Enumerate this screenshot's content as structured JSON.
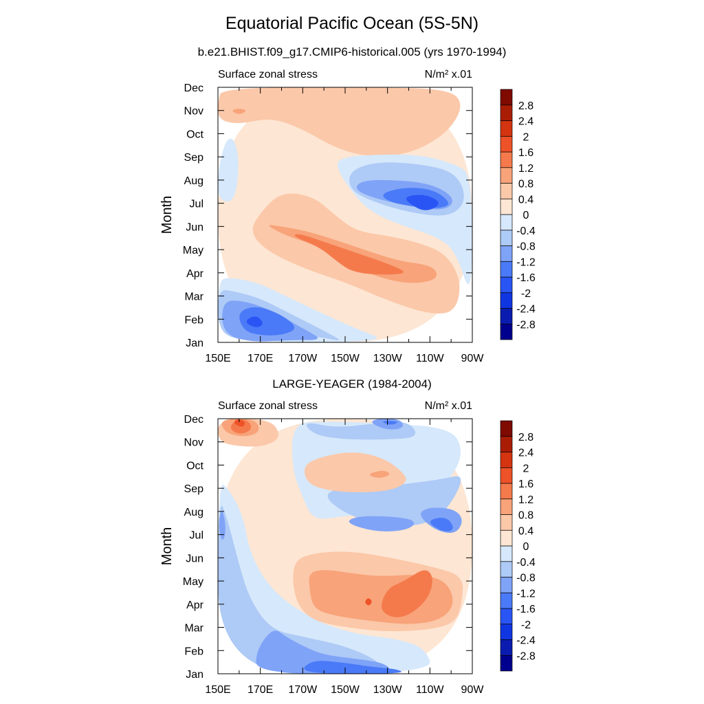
{
  "figure": {
    "title": "Equatorial Pacific Ocean (5S-5N)",
    "subtitle": "b.e21.BHIST.f09_g17.CMIP6-historical.005 (yrs 1970-1994)",
    "second_panel_title": "LARGE-YEAGER (1984-2004)"
  },
  "chart_data": [
    {
      "type": "heatmap",
      "title": "b.e21.BHIST.f09_g17.CMIP6-historical.005 (yrs 1970-1994)",
      "left_label": "Surface zonal stress",
      "units": "N/m² x.01",
      "xlabel": "",
      "ylabel": "Month",
      "x_ticks": [
        "150E",
        "170E",
        "170W",
        "150W",
        "130W",
        "110W",
        "90W"
      ],
      "x_values_deg_east": [
        150,
        170,
        190,
        210,
        230,
        250,
        270
      ],
      "xlim": [
        150,
        270
      ],
      "y_ticks": [
        "Jan",
        "Feb",
        "Mar",
        "Apr",
        "May",
        "Jun",
        "Jul",
        "Aug",
        "Sep",
        "Oct",
        "Nov",
        "Dec"
      ],
      "ylim": [
        1,
        12
      ],
      "colorbar_labels": [
        "2.8",
        "2.4",
        "2",
        "1.6",
        "1.2",
        "0.8",
        "0.4",
        "0",
        "-0.4",
        "-0.8",
        "-1.2",
        "-1.6",
        "-2",
        "-2.4",
        "-2.8"
      ],
      "features": [
        {
          "value": -1.4,
          "lon": 238,
          "month": 7.0
        },
        {
          "value": -2.1,
          "lon": 246,
          "month": 7.0
        },
        {
          "value": 1.3,
          "lon": 208,
          "month": 4.3
        },
        {
          "value": 1.7,
          "lon": 196,
          "month": 5.0
        },
        {
          "value": -1.5,
          "lon": 170,
          "month": 2.0
        },
        {
          "value": -2.0,
          "lon": 167,
          "month": 2.0
        },
        {
          "value": 0.8,
          "lon": 154,
          "month": 11.0
        }
      ]
    },
    {
      "type": "heatmap",
      "title": "LARGE-YEAGER (1984-2004)",
      "left_label": "Surface zonal stress",
      "units": "N/m² x.01",
      "xlabel": "",
      "ylabel": "Month",
      "x_ticks": [
        "150E",
        "170E",
        "170W",
        "150W",
        "130W",
        "110W",
        "90W"
      ],
      "x_values_deg_east": [
        150,
        170,
        190,
        210,
        230,
        250,
        270
      ],
      "xlim": [
        150,
        270
      ],
      "y_ticks": [
        "Jan",
        "Feb",
        "Mar",
        "Apr",
        "May",
        "Jun",
        "Jul",
        "Aug",
        "Sep",
        "Oct",
        "Nov",
        "Dec"
      ],
      "ylim": [
        1,
        12
      ],
      "colorbar_labels": [
        "2.8",
        "2.4",
        "2",
        "1.6",
        "1.2",
        "0.8",
        "0.4",
        "0",
        "-0.4",
        "-0.8",
        "-1.2",
        "-1.6",
        "-2",
        "-2.4",
        "-2.8"
      ],
      "features": [
        {
          "value": 1.7,
          "lon": 157,
          "month": 11.6
        },
        {
          "value": 1.3,
          "lon": 232,
          "month": 4.2
        },
        {
          "value": 0.8,
          "lon": 216,
          "month": 4.7
        },
        {
          "value": 0.6,
          "lon": 224,
          "month": 9.6
        },
        {
          "value": -1.3,
          "lon": 250,
          "month": 7.4
        },
        {
          "value": -1.0,
          "lon": 225,
          "month": 7.6
        },
        {
          "value": -1.1,
          "lon": 170,
          "month": 2.5
        },
        {
          "value": -1.2,
          "lon": 218,
          "month": 1.1
        },
        {
          "value": -1.2,
          "lon": 230,
          "month": 11.8
        }
      ]
    }
  ],
  "colors": {
    "levels": [
      "#00008e",
      "#0a1cb0",
      "#1036e2",
      "#2a55f5",
      "#4a7af7",
      "#7fa3f7",
      "#aecaf6",
      "#d6e8fb",
      "#fde6d3",
      "#fbc8a9",
      "#f8a379",
      "#f47a4c",
      "#ee5228",
      "#d43410",
      "#aa1d05",
      "#7e0a00"
    ]
  }
}
